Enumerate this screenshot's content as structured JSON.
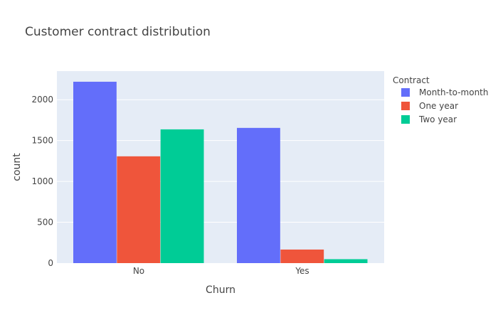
{
  "chart_data": {
    "type": "bar",
    "title": "Customer contract distribution",
    "xlabel": "Churn",
    "ylabel": "count",
    "categories": [
      "No",
      "Yes"
    ],
    "ylim": [
      0,
      2350
    ],
    "yticks": [
      0,
      500,
      1000,
      1500,
      2000
    ],
    "grid": true,
    "legend": {
      "title": "Contract",
      "placement": "top-right"
    },
    "series": [
      {
        "name": "Month-to-month",
        "color": "#636efa",
        "values": [
          2220,
          1655
        ]
      },
      {
        "name": "One year",
        "color": "#ef553b",
        "values": [
          1307,
          166
        ]
      },
      {
        "name": "Two year",
        "color": "#00cc96",
        "values": [
          1637,
          48
        ]
      }
    ]
  },
  "colors": {
    "plot_background": "#e5ecf6",
    "gridline": "#ffffff",
    "text": "#444444"
  }
}
